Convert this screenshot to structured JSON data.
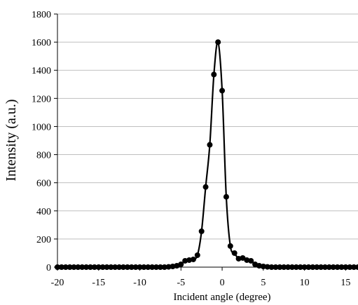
{
  "chart_data": {
    "type": "scatter",
    "title": "",
    "xlabel": "Incident angle (degree)",
    "ylabel": "Intensity (a.u.)",
    "xlim": [
      -20,
      16.5
    ],
    "ylim": [
      0,
      1800
    ],
    "x_ticks": [
      "-20",
      "-15",
      "-10",
      "-5",
      "0",
      "5",
      "10",
      "15"
    ],
    "y_ticks": [
      "0",
      "200",
      "400",
      "600",
      "800",
      "1000",
      "1200",
      "1400",
      "1600",
      "1800"
    ],
    "grid": "horizontal",
    "legend": "none",
    "series": [
      {
        "style": "markers-with-smooth-line",
        "color": "#000000",
        "x": [
          -20,
          -19.5,
          -19,
          -18.5,
          -18,
          -17.5,
          -17,
          -16.5,
          -16,
          -15.5,
          -15,
          -14.5,
          -14,
          -13.5,
          -13,
          -12.5,
          -12,
          -11.5,
          -11,
          -10.5,
          -10,
          -9.5,
          -9,
          -8.5,
          -8,
          -7.5,
          -7,
          -6.5,
          -6,
          -5.5,
          -5,
          -4.5,
          -4,
          -3.5,
          -3,
          -2.5,
          -2,
          -1.5,
          -1,
          -0.5,
          0,
          0.5,
          1,
          1.5,
          2,
          2.5,
          3,
          3.5,
          4,
          4.5,
          5,
          5.5,
          6,
          6.5,
          7,
          7.5,
          8,
          8.5,
          9,
          9.5,
          10,
          10.5,
          11,
          11.5,
          12,
          12.5,
          13,
          13.5,
          14,
          14.5,
          15,
          15.5,
          16,
          16.5
        ],
        "y": [
          0,
          0,
          0,
          0,
          0,
          0,
          0,
          0,
          0,
          0,
          0,
          0,
          0,
          0,
          0,
          0,
          0,
          0,
          0,
          0,
          0,
          0,
          0,
          0,
          0,
          0,
          0,
          2,
          5,
          10,
          20,
          45,
          50,
          55,
          85,
          255,
          570,
          870,
          1370,
          1600,
          1255,
          500,
          150,
          100,
          60,
          65,
          50,
          45,
          20,
          10,
          5,
          2,
          0,
          0,
          0,
          0,
          0,
          0,
          0,
          0,
          0,
          0,
          0,
          0,
          0,
          0,
          0,
          0,
          0,
          0,
          0,
          0,
          0,
          0
        ]
      }
    ]
  }
}
